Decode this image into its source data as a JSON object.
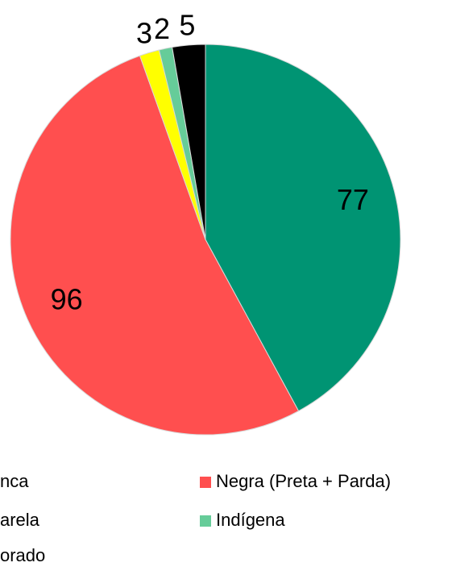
{
  "chart_data": {
    "type": "pie",
    "categories": [
      "nca",
      "Negra (Preta + Parda)",
      "arela",
      "Indígena",
      "orado"
    ],
    "values": [
      77,
      96,
      3,
      2,
      5
    ],
    "colors": [
      "#009473",
      "#ff4f4f",
      "#ffff00",
      "#66cc99",
      "#000000"
    ]
  }
}
